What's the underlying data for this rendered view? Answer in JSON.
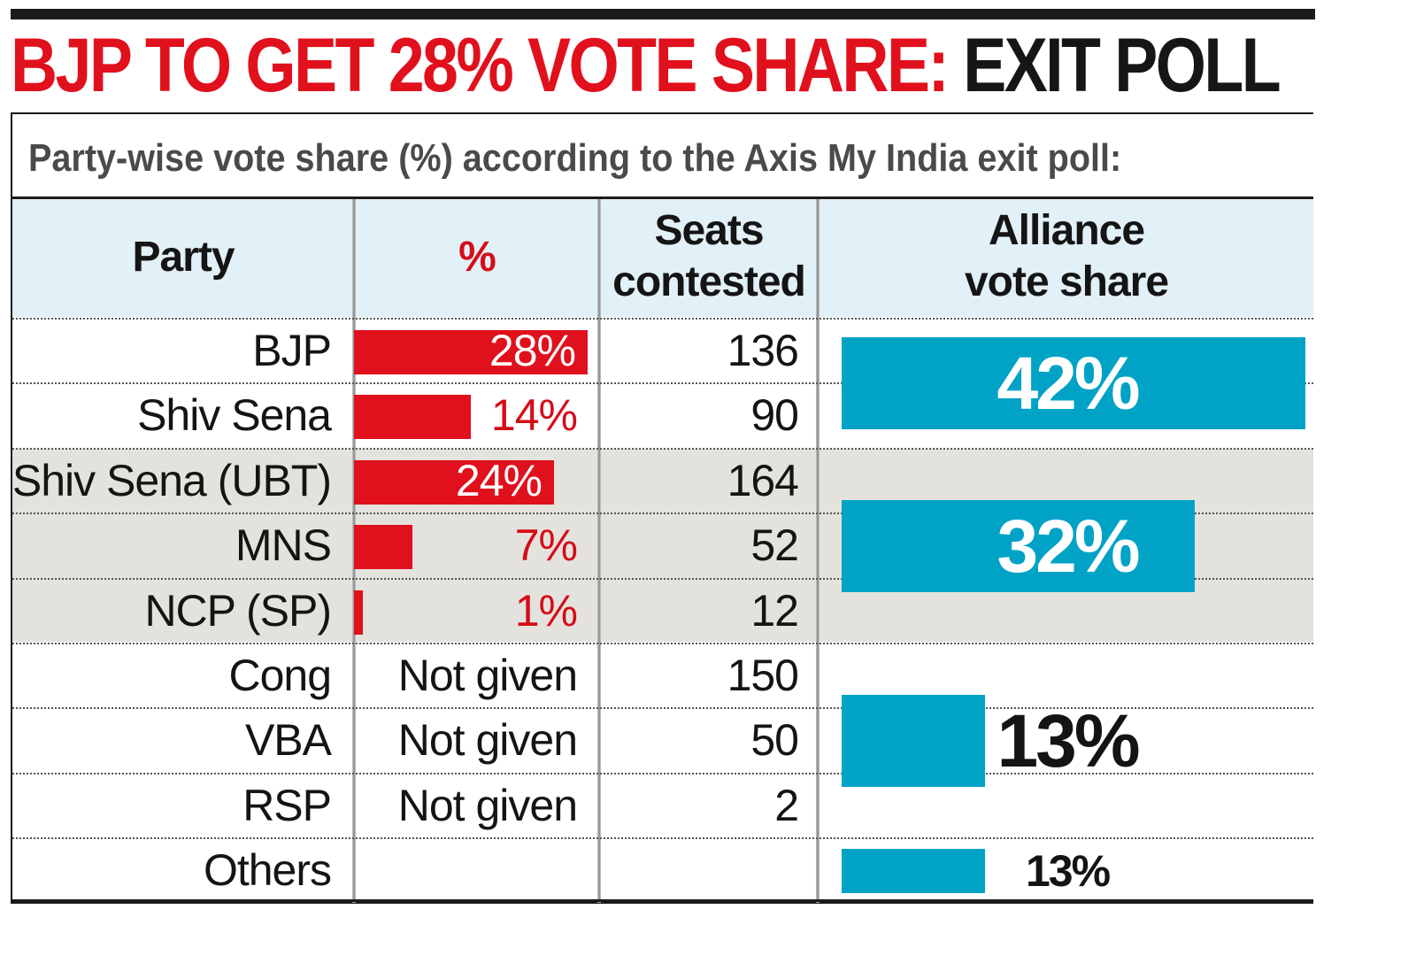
{
  "headline": {
    "red": "BJP TO GET 28% VOTE SHARE:",
    "black": "EXIT POLL"
  },
  "subtitle": "Party-wise vote share (%)  according to the Axis My India exit poll:",
  "columns": {
    "party": "Party",
    "pct": "%",
    "seats_line1": "Seats",
    "seats_line2": "contested",
    "alliance_line1": "Alliance",
    "alliance_line2": "vote share"
  },
  "colors": {
    "red": "#e0101c",
    "blue": "#00a3c6",
    "header_bg": "#e2f0f8",
    "group_bg": "#e4e2dd"
  },
  "chart_data": {
    "type": "table",
    "title": "BJP TO GET 28% VOTE SHARE: EXIT POLL",
    "subtitle": "Party-wise vote share (%) according to the Axis My India exit poll:",
    "rows": [
      {
        "party": "BJP",
        "pct": 28,
        "pct_label": "28%",
        "seats": "136"
      },
      {
        "party": "Shiv Sena",
        "pct": 14,
        "pct_label": "14%",
        "seats": "90"
      },
      {
        "party": "Shiv Sena (UBT)",
        "pct": 24,
        "pct_label": "24%",
        "seats": "164"
      },
      {
        "party": "MNS",
        "pct": 7,
        "pct_label": "7%",
        "seats": "52"
      },
      {
        "party": "NCP (SP)",
        "pct": 1,
        "pct_label": "1%",
        "seats": "12"
      },
      {
        "party": "Cong",
        "pct": null,
        "pct_label": "Not given",
        "seats": "150"
      },
      {
        "party": "VBA",
        "pct": null,
        "pct_label": "Not given",
        "seats": "50"
      },
      {
        "party": "RSP",
        "pct": null,
        "pct_label": "Not given",
        "seats": "2"
      },
      {
        "party": "Others",
        "pct": null,
        "pct_label": "",
        "seats": ""
      }
    ],
    "alliances": [
      {
        "value": 42,
        "label": "42%",
        "first_row": 0,
        "last_row": 1
      },
      {
        "value": 32,
        "label": "32%",
        "first_row": 2,
        "last_row": 4
      },
      {
        "value": 13,
        "label": "13%",
        "first_row": 5,
        "last_row": 7
      },
      {
        "value": 13,
        "label": "13%",
        "first_row": 8,
        "last_row": 8
      }
    ]
  }
}
